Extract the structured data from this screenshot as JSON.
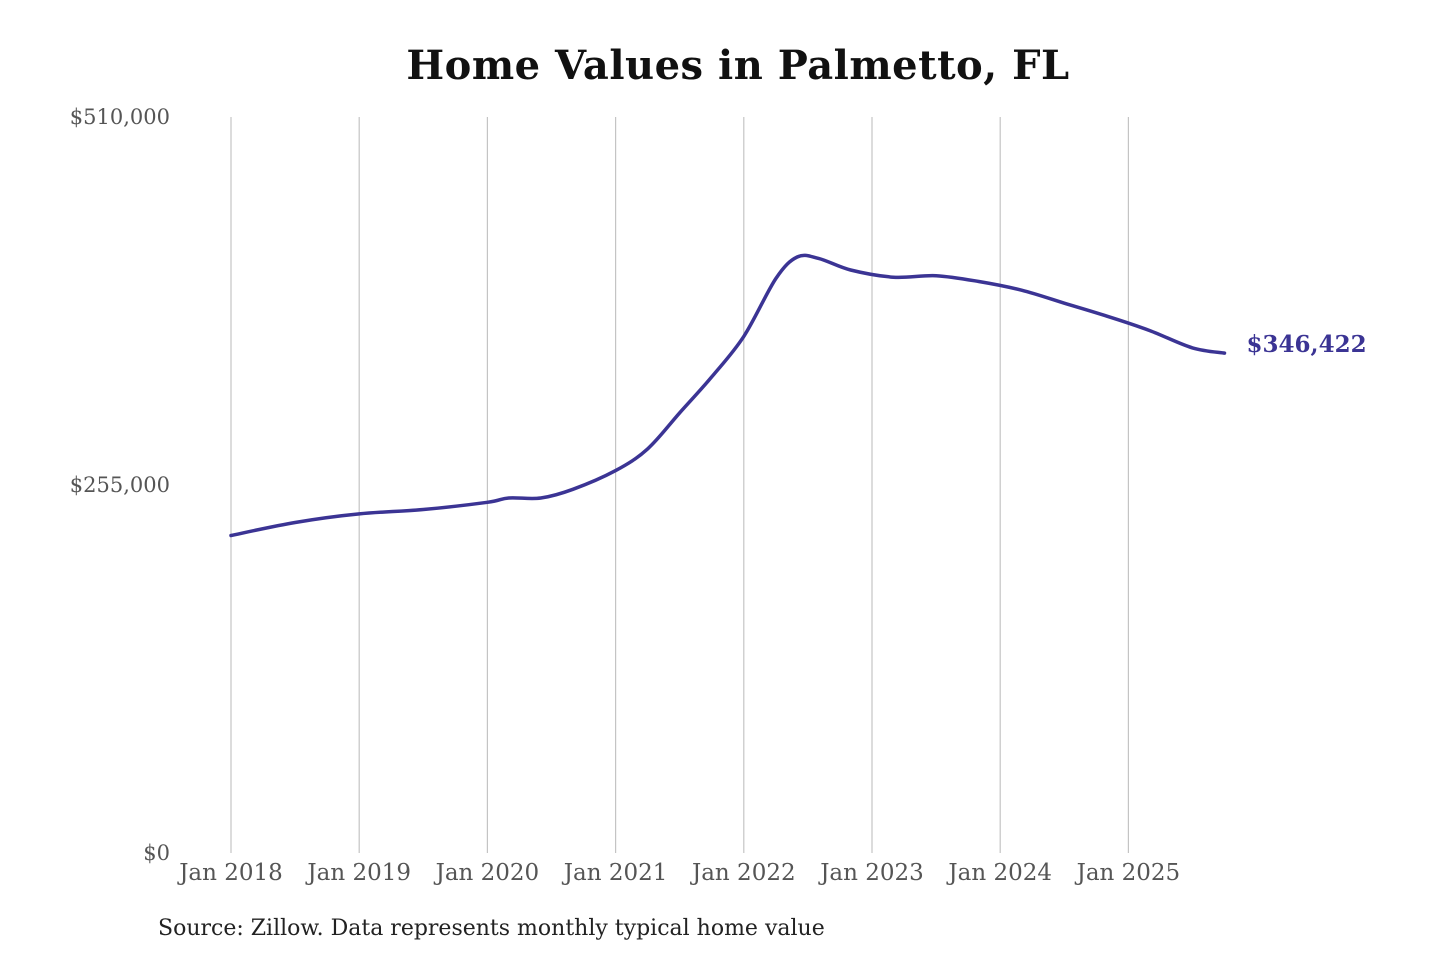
{
  "chart_data": {
    "type": "line",
    "title": "Home Values in Palmetto, FL",
    "xlabel": "",
    "ylabel": "",
    "ylim": [
      0,
      510000
    ],
    "yticks": [
      0,
      255000,
      510000
    ],
    "ytick_labels": [
      "$0",
      "$255,000",
      "$510,000"
    ],
    "x_tick_labels": [
      "Jan 2018",
      "Jan 2019",
      "Jan 2020",
      "Jan 2021",
      "Jan 2022",
      "Jan 2023",
      "Jan 2024",
      "Jan 2025"
    ],
    "x_tick_dates": [
      "2018-01",
      "2019-01",
      "2020-01",
      "2021-01",
      "2022-01",
      "2023-01",
      "2024-01",
      "2025-01"
    ],
    "grid": "vertical",
    "line_color": "#3b3494",
    "series": [
      {
        "x": [
          "2018-01",
          "2018-07",
          "2019-01",
          "2019-07",
          "2020-01",
          "2020-03",
          "2020-06",
          "2020-09",
          "2021-01",
          "2021-04",
          "2021-07",
          "2021-10",
          "2022-01",
          "2022-04",
          "2022-06",
          "2022-08",
          "2022-11",
          "2023-03",
          "2023-07",
          "2023-11",
          "2024-03",
          "2024-07",
          "2024-11",
          "2025-03",
          "2025-07",
          "2025-10"
        ],
        "values": [
          220000,
          229000,
          235000,
          238000,
          243000,
          246000,
          246000,
          252000,
          265000,
          280000,
          305000,
          330000,
          358000,
          398000,
          413000,
          412000,
          404000,
          399000,
          400000,
          396000,
          390000,
          381000,
          372000,
          362000,
          350000,
          346422
        ]
      }
    ],
    "end_label": "$346,422"
  },
  "source_note": "Source: Zillow. Data represents monthly typical home value"
}
